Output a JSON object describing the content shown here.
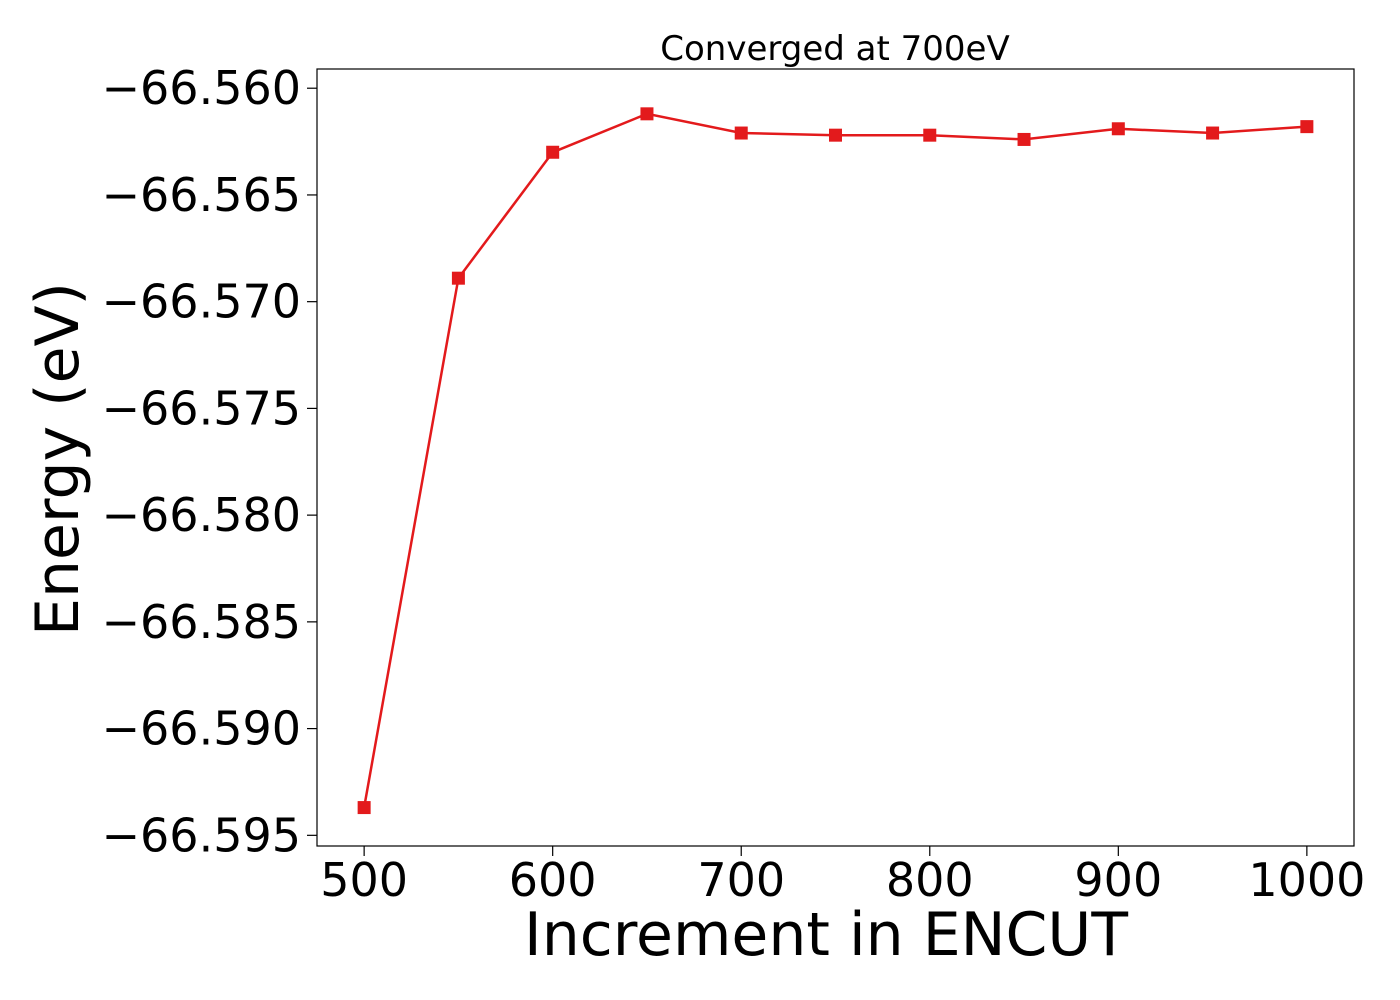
{
  "chart_data": {
    "type": "line",
    "title": "Converged at 700eV",
    "xlabel": "Increment in ENCUT",
    "ylabel": "Energy (eV)",
    "x": [
      500,
      550,
      600,
      650,
      700,
      750,
      800,
      850,
      900,
      950,
      1000
    ],
    "series": [
      {
        "values": [
          -66.5937,
          -66.5689,
          -66.563,
          -66.5612,
          -66.5621,
          -66.5622,
          -66.5622,
          -66.5624,
          -66.5619,
          -66.5621,
          -66.5618
        ],
        "color": "#e31a1c",
        "marker": "square"
      }
    ],
    "xlim": [
      475,
      1025
    ],
    "ylim": [
      -66.5955,
      -66.5591
    ],
    "xticks": [
      500,
      600,
      700,
      800,
      900,
      1000
    ],
    "yticks": [
      -66.56,
      -66.565,
      -66.57,
      -66.575,
      -66.58,
      -66.585,
      -66.59,
      -66.595
    ],
    "xtick_labels": [
      "500",
      "600",
      "700",
      "800",
      "900",
      "1000"
    ],
    "ytick_labels": [
      "−66.560",
      "−66.565",
      "−66.570",
      "−66.575",
      "−66.580",
      "−66.585",
      "−66.590",
      "−66.595"
    ],
    "grid": false,
    "legend": "none"
  }
}
